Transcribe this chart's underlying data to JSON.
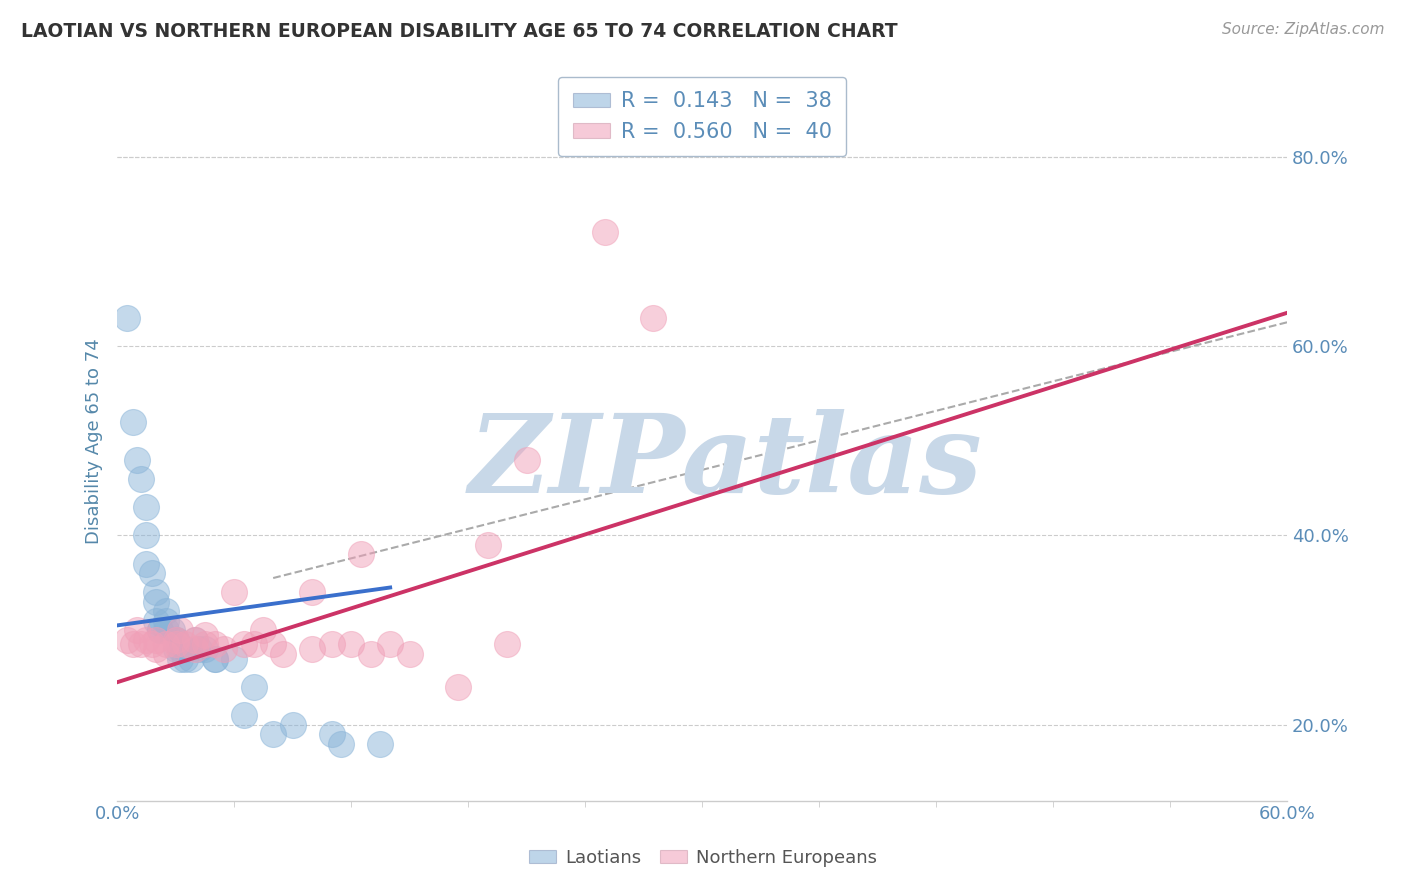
{
  "title": "LAOTIAN VS NORTHERN EUROPEAN DISABILITY AGE 65 TO 74 CORRELATION CHART",
  "source": "Source: ZipAtlas.com",
  "ylabel_label": "Disability Age 65 to 74",
  "xlim": [
    0.0,
    0.6
  ],
  "ylim": [
    0.12,
    0.88
  ],
  "yticks": [
    0.2,
    0.4,
    0.6,
    0.8
  ],
  "ytick_labels": [
    "20.0%",
    "40.0%",
    "60.0%",
    "80.0%"
  ],
  "legend_entries": [
    {
      "label": "R =  0.143   N =  38"
    },
    {
      "label": "R =  0.560   N =  40"
    }
  ],
  "laotian_color": "#8ab4d8",
  "northern_color": "#f0a0b8",
  "laotian_scatter": [
    [
      0.005,
      0.63
    ],
    [
      0.008,
      0.52
    ],
    [
      0.01,
      0.48
    ],
    [
      0.012,
      0.46
    ],
    [
      0.015,
      0.43
    ],
    [
      0.015,
      0.4
    ],
    [
      0.015,
      0.37
    ],
    [
      0.018,
      0.36
    ],
    [
      0.02,
      0.34
    ],
    [
      0.02,
      0.33
    ],
    [
      0.02,
      0.31
    ],
    [
      0.022,
      0.3
    ],
    [
      0.022,
      0.3
    ],
    [
      0.025,
      0.32
    ],
    [
      0.025,
      0.31
    ],
    [
      0.025,
      0.3
    ],
    [
      0.028,
      0.3
    ],
    [
      0.03,
      0.29
    ],
    [
      0.03,
      0.29
    ],
    [
      0.03,
      0.28
    ],
    [
      0.032,
      0.28
    ],
    [
      0.032,
      0.27
    ],
    [
      0.035,
      0.28
    ],
    [
      0.035,
      0.27
    ],
    [
      0.038,
      0.27
    ],
    [
      0.04,
      0.29
    ],
    [
      0.042,
      0.28
    ],
    [
      0.045,
      0.28
    ],
    [
      0.05,
      0.27
    ],
    [
      0.05,
      0.27
    ],
    [
      0.06,
      0.27
    ],
    [
      0.065,
      0.21
    ],
    [
      0.07,
      0.24
    ],
    [
      0.08,
      0.19
    ],
    [
      0.09,
      0.2
    ],
    [
      0.11,
      0.19
    ],
    [
      0.115,
      0.18
    ],
    [
      0.135,
      0.18
    ]
  ],
  "northern_scatter": [
    [
      0.005,
      0.29
    ],
    [
      0.008,
      0.285
    ],
    [
      0.01,
      0.3
    ],
    [
      0.012,
      0.285
    ],
    [
      0.015,
      0.29
    ],
    [
      0.018,
      0.285
    ],
    [
      0.02,
      0.29
    ],
    [
      0.02,
      0.28
    ],
    [
      0.025,
      0.285
    ],
    [
      0.025,
      0.275
    ],
    [
      0.03,
      0.29
    ],
    [
      0.03,
      0.285
    ],
    [
      0.032,
      0.3
    ],
    [
      0.035,
      0.285
    ],
    [
      0.04,
      0.29
    ],
    [
      0.04,
      0.28
    ],
    [
      0.045,
      0.285
    ],
    [
      0.045,
      0.295
    ],
    [
      0.05,
      0.285
    ],
    [
      0.055,
      0.28
    ],
    [
      0.06,
      0.34
    ],
    [
      0.065,
      0.285
    ],
    [
      0.07,
      0.285
    ],
    [
      0.075,
      0.3
    ],
    [
      0.08,
      0.285
    ],
    [
      0.085,
      0.275
    ],
    [
      0.1,
      0.34
    ],
    [
      0.1,
      0.28
    ],
    [
      0.11,
      0.285
    ],
    [
      0.12,
      0.285
    ],
    [
      0.125,
      0.38
    ],
    [
      0.13,
      0.275
    ],
    [
      0.14,
      0.285
    ],
    [
      0.15,
      0.275
    ],
    [
      0.175,
      0.24
    ],
    [
      0.19,
      0.39
    ],
    [
      0.2,
      0.285
    ],
    [
      0.21,
      0.48
    ],
    [
      0.25,
      0.72
    ],
    [
      0.275,
      0.63
    ]
  ],
  "laotian_line": {
    "x0": 0.0,
    "y0": 0.305,
    "x1": 0.14,
    "y1": 0.345
  },
  "northern_line": {
    "x0": 0.0,
    "y0": 0.245,
    "x1": 0.6,
    "y1": 0.635
  },
  "dashed_line": {
    "x0": 0.08,
    "y0": 0.355,
    "x1": 0.6,
    "y1": 0.625
  },
  "watermark_text": "ZIPatlas",
  "watermark_color": "#c8d8e8",
  "background_color": "#ffffff",
  "grid_color": "#cccccc",
  "title_color": "#333333",
  "axis_label_color": "#5588aa",
  "tick_label_color": "#5b8db8",
  "legend_label_color": "#5b8db8",
  "source_color": "#999999"
}
